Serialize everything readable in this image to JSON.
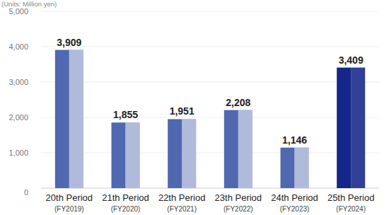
{
  "chart_data": {
    "type": "bar",
    "y_label": "(Units: Million yen)",
    "categories": [
      "20th Period\n(FY2019)",
      "21th Period\n(FY2020)",
      "22th Period\n(FY2021)",
      "23th Period\n(FY2022)",
      "24th Period\n(FY2023)",
      "25th Period\n(FY2024)"
    ],
    "values": [
      3909,
      1855,
      1951,
      2208,
      1146,
      3409
    ],
    "value_labels": [
      "3,909",
      "1,855",
      "1,951",
      "2,208",
      "1,146",
      "3,409"
    ],
    "colors": [
      "#5068b0",
      "#5068b0",
      "#5068b0",
      "#5068b0",
      "#5068b0",
      "#142688"
    ],
    "ylim": [
      0,
      5000
    ],
    "yticks": [
      0,
      {
        "value": 1000,
        "label": "1,000"
      },
      {
        "value": 2000,
        "label": "2,000"
      },
      {
        "value": 3000,
        "label": "3,000"
      },
      {
        "value": 4000,
        "label": "4,000"
      },
      {
        "value": 5000,
        "label": "5,000"
      }
    ],
    "grid": true,
    "data_labels": true
  }
}
